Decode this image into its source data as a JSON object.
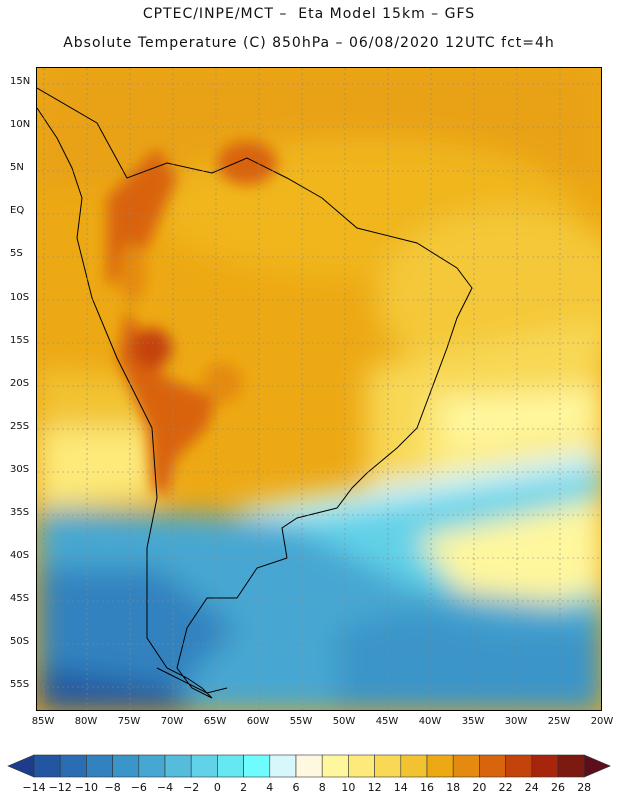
{
  "header": {
    "line1": "CPTEC/INPE/MCT –  Eta Model 15km – GFS",
    "line2": "Absolute Temperature (C) 850hPa – 06/08/2020 12UTC fct=4h"
  },
  "map": {
    "lat_labels": [
      "15N",
      "10N",
      "5N",
      "EQ",
      "5S",
      "10S",
      "15S",
      "20S",
      "25S",
      "30S",
      "35S",
      "40S",
      "45S",
      "50S",
      "55S"
    ],
    "lon_labels": [
      "85W",
      "80W",
      "75W",
      "70W",
      "65W",
      "60W",
      "55W",
      "50W",
      "45W",
      "40W",
      "35W",
      "30W",
      "25W",
      "20W"
    ],
    "grid": "dashed",
    "background_field": "temperature"
  },
  "colorbar": {
    "labels": [
      "-14",
      "-12",
      "-10",
      "-8",
      "-6",
      "-4",
      "-2",
      "0",
      "2",
      "4",
      "6",
      "8",
      "10",
      "12",
      "14",
      "16",
      "18",
      "20",
      "22",
      "24",
      "26",
      "28"
    ],
    "colors": [
      "#1d3c8c",
      "#2356a0",
      "#2a6db3",
      "#3282bf",
      "#3a95c9",
      "#46a7d2",
      "#55bcdc",
      "#62d2e8",
      "#66e8f2",
      "#6ffcff",
      "#d6f7fb",
      "#fff8e0",
      "#fff79e",
      "#fdea7a",
      "#f8d855",
      "#f2c331",
      "#eda914",
      "#e58a10",
      "#d9640e",
      "#c4420c",
      "#a7250c",
      "#7c1a10",
      "#5c0f1a"
    ]
  }
}
